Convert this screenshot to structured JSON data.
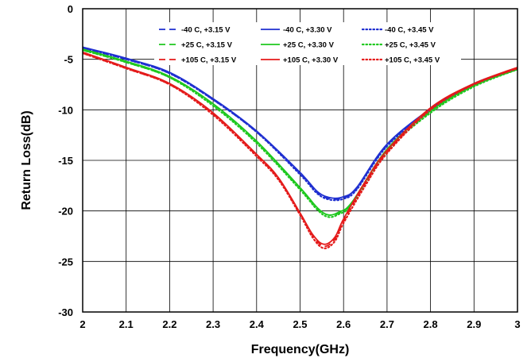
{
  "chart_data": {
    "type": "line",
    "title": "",
    "xlabel": "Frequency(GHz)",
    "ylabel": "Return Loss(dB)",
    "xlim": [
      2,
      3
    ],
    "ylim": [
      -30,
      0
    ],
    "x_ticks": [
      "2",
      "2.1",
      "2.2",
      "2.3",
      "2.4",
      "2.5",
      "2.6",
      "2.7",
      "2.8",
      "2.9",
      "3"
    ],
    "y_ticks": [
      "0",
      "-5",
      "-10",
      "-15",
      "-20",
      "-25",
      "-30"
    ],
    "grid": true,
    "legend_position": "top-center",
    "colors": {
      "minus40": "#1f2fd0",
      "plus25": "#1fc81f",
      "plus105": "#e41a1a"
    },
    "series": [
      {
        "name": "-40 C, +3.15 V",
        "color": "#1f2fd0",
        "style": "dashed",
        "x": [
          2.0,
          2.1,
          2.2,
          2.3,
          2.4,
          2.5,
          2.54,
          2.57,
          2.6,
          2.63,
          2.7,
          2.8,
          2.9,
          3.0
        ],
        "y": [
          -3.9,
          -5.0,
          -6.4,
          -9.0,
          -12.2,
          -16.3,
          -18.2,
          -18.8,
          -18.7,
          -17.8,
          -13.5,
          -10.0,
          -7.5,
          -5.9
        ]
      },
      {
        "name": "-40 C, +3.30 V",
        "color": "#1f2fd0",
        "style": "solid",
        "x": [
          2.0,
          2.1,
          2.2,
          2.3,
          2.4,
          2.5,
          2.54,
          2.57,
          2.6,
          2.63,
          2.7,
          2.8,
          2.9,
          3.0
        ],
        "y": [
          -3.8,
          -4.9,
          -6.3,
          -8.9,
          -12.1,
          -16.2,
          -18.1,
          -18.7,
          -18.6,
          -17.7,
          -13.4,
          -9.9,
          -7.4,
          -5.9
        ]
      },
      {
        "name": "-40 C, +3.45 V",
        "color": "#1f2fd0",
        "style": "dotted",
        "x": [
          2.0,
          2.1,
          2.2,
          2.3,
          2.4,
          2.5,
          2.54,
          2.57,
          2.6,
          2.63,
          2.7,
          2.8,
          2.9,
          3.0
        ],
        "y": [
          -3.9,
          -5.0,
          -6.4,
          -9.0,
          -12.2,
          -16.4,
          -18.3,
          -18.9,
          -18.8,
          -17.9,
          -13.6,
          -10.1,
          -7.5,
          -6.0
        ]
      },
      {
        "name": "+25 C, +3.15 V",
        "color": "#1fc81f",
        "style": "dashed",
        "x": [
          2.0,
          2.1,
          2.2,
          2.3,
          2.4,
          2.5,
          2.54,
          2.565,
          2.59,
          2.62,
          2.7,
          2.8,
          2.9,
          3.0
        ],
        "y": [
          -4.1,
          -5.3,
          -6.8,
          -9.5,
          -13.2,
          -17.8,
          -19.8,
          -20.4,
          -20.2,
          -19.2,
          -14.0,
          -10.2,
          -7.6,
          -6.0
        ]
      },
      {
        "name": "+25 C, +3.30 V",
        "color": "#1fc81f",
        "style": "solid",
        "x": [
          2.0,
          2.1,
          2.2,
          2.3,
          2.4,
          2.5,
          2.54,
          2.565,
          2.59,
          2.62,
          2.7,
          2.8,
          2.9,
          3.0
        ],
        "y": [
          -4.0,
          -5.2,
          -6.7,
          -9.4,
          -13.1,
          -17.7,
          -19.7,
          -20.4,
          -20.1,
          -19.1,
          -13.9,
          -10.1,
          -7.6,
          -6.0
        ]
      },
      {
        "name": "+25 C, +3.45 V",
        "color": "#1fc81f",
        "style": "dotted",
        "x": [
          2.0,
          2.1,
          2.2,
          2.3,
          2.4,
          2.5,
          2.54,
          2.565,
          2.59,
          2.62,
          2.7,
          2.8,
          2.9,
          3.0
        ],
        "y": [
          -4.1,
          -5.3,
          -6.8,
          -9.6,
          -13.3,
          -17.9,
          -19.9,
          -20.6,
          -20.3,
          -19.3,
          -14.1,
          -10.3,
          -7.7,
          -6.0
        ]
      },
      {
        "name": "+105 C, +3.15 V",
        "color": "#e41a1a",
        "style": "dashed",
        "x": [
          2.0,
          2.1,
          2.2,
          2.3,
          2.4,
          2.45,
          2.5,
          2.53,
          2.555,
          2.58,
          2.6,
          2.65,
          2.7,
          2.8,
          2.9,
          3.0
        ],
        "y": [
          -4.4,
          -5.9,
          -7.5,
          -10.4,
          -14.5,
          -16.8,
          -20.3,
          -22.5,
          -23.5,
          -22.8,
          -21.0,
          -17.3,
          -14.2,
          -9.9,
          -7.5,
          -5.9
        ]
      },
      {
        "name": "+105 C, +3.30 V",
        "color": "#e41a1a",
        "style": "solid",
        "x": [
          2.0,
          2.1,
          2.2,
          2.3,
          2.4,
          2.45,
          2.5,
          2.53,
          2.555,
          2.58,
          2.6,
          2.65,
          2.7,
          2.8,
          2.9,
          3.0
        ],
        "y": [
          -4.3,
          -5.8,
          -7.4,
          -10.3,
          -14.4,
          -16.7,
          -20.2,
          -22.4,
          -23.3,
          -22.6,
          -20.8,
          -17.1,
          -14.0,
          -9.8,
          -7.4,
          -5.8
        ]
      },
      {
        "name": "+105 C, +3.45 V",
        "color": "#e41a1a",
        "style": "dotted",
        "x": [
          2.0,
          2.1,
          2.2,
          2.3,
          2.4,
          2.45,
          2.5,
          2.53,
          2.555,
          2.58,
          2.6,
          2.65,
          2.7,
          2.8,
          2.9,
          3.0
        ],
        "y": [
          -4.4,
          -5.9,
          -7.5,
          -10.5,
          -14.6,
          -16.9,
          -20.4,
          -22.7,
          -23.7,
          -23.0,
          -21.2,
          -17.5,
          -14.3,
          -10.0,
          -7.5,
          -5.9
        ]
      }
    ]
  }
}
